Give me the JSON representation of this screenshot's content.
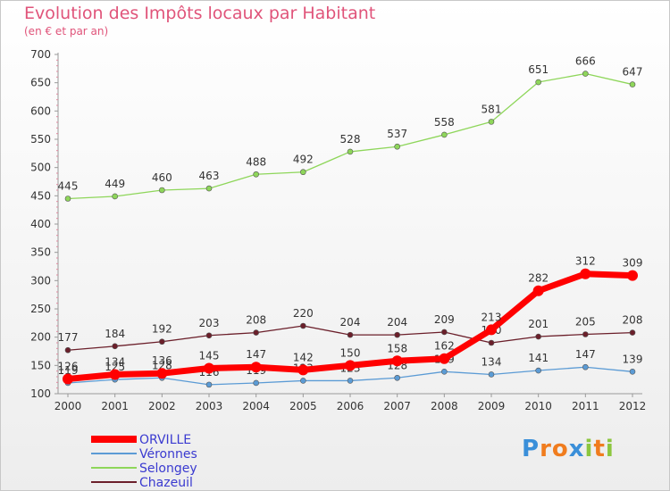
{
  "title": "Evolution des Impôts locaux par Habitant",
  "subtitle": "(en € et par an)",
  "logo": {
    "text": "Proxiti",
    "letters": [
      "P",
      "r",
      "o",
      "x",
      "i",
      "t",
      "i"
    ],
    "colors": [
      "#3a8fd9",
      "#f07c1e",
      "#f07c1e",
      "#3a8fd9",
      "#8cc63f",
      "#f07c1e",
      "#8cc63f"
    ]
  },
  "chart_data": {
    "type": "line",
    "title": "Evolution des Impôts locaux par Habitant",
    "subtitle": "(en € et par an)",
    "categories": [
      "2000",
      "2001",
      "2002",
      "2003",
      "2004",
      "2005",
      "2006",
      "2007",
      "2008",
      "2009",
      "2010",
      "2011",
      "2012"
    ],
    "yticks": [
      100,
      150,
      200,
      250,
      300,
      350,
      400,
      450,
      500,
      550,
      600,
      650,
      700
    ],
    "ylim": [
      100,
      700
    ],
    "grid": false,
    "legend_position": "bottom-left",
    "series": [
      {
        "name": "Selongey",
        "color": "#8ed65a",
        "values": [
          445,
          449,
          460,
          463,
          488,
          492,
          528,
          537,
          558,
          581,
          651,
          666,
          647
        ]
      },
      {
        "name": "Chazeuil",
        "color": "#6b1f2a",
        "values": [
          177,
          184,
          192,
          203,
          208,
          220,
          204,
          204,
          209,
          190,
          201,
          205,
          208
        ]
      },
      {
        "name": "Véronnes",
        "color": "#5b9bd5",
        "values": [
          119,
          125,
          128,
          116,
          119,
          123,
          123,
          128,
          139,
          134,
          141,
          147,
          139
        ]
      },
      {
        "name": "ORVILLE",
        "color": "#ff0000",
        "values": [
          126,
          134,
          136,
          145,
          147,
          142,
          150,
          158,
          162,
          213,
          282,
          312,
          309
        ]
      }
    ],
    "legend_order": [
      "ORVILLE",
      "Véronnes",
      "Selongey",
      "Chazeuil"
    ]
  }
}
